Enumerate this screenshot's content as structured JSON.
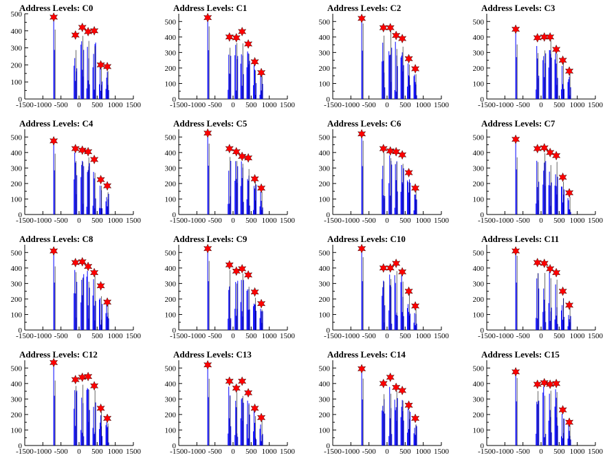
{
  "chart_data": [
    {
      "type": "bar",
      "title": "Address Levels: C0",
      "xlim": [
        -1500,
        1500
      ],
      "ylim": [
        0,
        500
      ],
      "x_ticks": [
        -1500,
        -1000,
        -500,
        0,
        500,
        1000,
        1500
      ],
      "y_ticks": [
        0,
        100,
        200,
        300,
        400,
        500
      ],
      "peaks_x": [
        -700,
        -100,
        90,
        250,
        420,
        600,
        780
      ],
      "peaks_y": [
        480,
        375,
        420,
        395,
        400,
        200,
        190
      ],
      "star_color": "#ff0000",
      "bar_color": "#0000ff"
    },
    {
      "type": "bar",
      "title": "Address Levels: C1",
      "xlim": [
        -1500,
        1500
      ],
      "ylim": [
        0,
        550
      ],
      "x_ticks": [
        -1500,
        -1000,
        -500,
        0,
        500,
        1000,
        1500
      ],
      "y_ticks": [
        0,
        100,
        200,
        300,
        400,
        500
      ],
      "peaks_x": [
        -700,
        -100,
        90,
        250,
        420,
        600,
        780
      ],
      "peaks_y": [
        525,
        400,
        395,
        435,
        355,
        240,
        170
      ],
      "star_color": "#ff0000",
      "bar_color": "#0000ff"
    },
    {
      "type": "bar",
      "title": "Address Levels: C2",
      "xlim": [
        -1500,
        1500
      ],
      "ylim": [
        0,
        550
      ],
      "x_ticks": [
        -1500,
        -1000,
        -500,
        0,
        500,
        1000,
        1500
      ],
      "y_ticks": [
        0,
        100,
        200,
        300,
        400,
        500
      ],
      "peaks_x": [
        -700,
        -100,
        90,
        250,
        420,
        600,
        780
      ],
      "peaks_y": [
        520,
        460,
        460,
        410,
        390,
        260,
        195
      ],
      "star_color": "#ff0000",
      "bar_color": "#0000ff"
    },
    {
      "type": "bar",
      "title": "Address Levels: C3",
      "xlim": [
        -1500,
        1500
      ],
      "ylim": [
        0,
        550
      ],
      "x_ticks": [
        -1500,
        -1000,
        -500,
        0,
        500,
        1000,
        1500
      ],
      "y_ticks": [
        0,
        100,
        200,
        300,
        400,
        500
      ],
      "peaks_x": [
        -700,
        -100,
        90,
        250,
        420,
        600,
        780
      ],
      "peaks_y": [
        450,
        395,
        400,
        400,
        320,
        250,
        180
      ],
      "star_color": "#ff0000",
      "bar_color": "#0000ff"
    },
    {
      "type": "bar",
      "title": "Address Levels: C4",
      "xlim": [
        -1500,
        1500
      ],
      "ylim": [
        0,
        550
      ],
      "x_ticks": [
        -1500,
        -1000,
        -500,
        0,
        500,
        1000,
        1500
      ],
      "y_ticks": [
        0,
        100,
        200,
        300,
        400,
        500
      ],
      "peaks_x": [
        -700,
        -100,
        90,
        250,
        420,
        600,
        780
      ],
      "peaks_y": [
        475,
        425,
        415,
        405,
        355,
        225,
        185
      ],
      "star_color": "#ff0000",
      "bar_color": "#0000ff"
    },
    {
      "type": "bar",
      "title": "Address Levels: C5",
      "xlim": [
        -1500,
        1500
      ],
      "ylim": [
        0,
        550
      ],
      "x_ticks": [
        -1500,
        -1000,
        -500,
        0,
        500,
        1000,
        1500
      ],
      "y_ticks": [
        0,
        100,
        200,
        300,
        400,
        500
      ],
      "peaks_x": [
        -700,
        -100,
        90,
        250,
        420,
        600,
        780
      ],
      "peaks_y": [
        525,
        425,
        405,
        375,
        365,
        230,
        170
      ],
      "star_color": "#ff0000",
      "bar_color": "#0000ff"
    },
    {
      "type": "bar",
      "title": "Address Levels: C6",
      "xlim": [
        -1500,
        1500
      ],
      "ylim": [
        0,
        550
      ],
      "x_ticks": [
        -1500,
        -1000,
        -500,
        0,
        500,
        1000,
        1500
      ],
      "y_ticks": [
        0,
        100,
        200,
        300,
        400,
        500
      ],
      "peaks_x": [
        -700,
        -100,
        90,
        250,
        420,
        600,
        780
      ],
      "peaks_y": [
        520,
        425,
        410,
        405,
        385,
        270,
        170
      ],
      "star_color": "#ff0000",
      "bar_color": "#0000ff"
    },
    {
      "type": "bar",
      "title": "Address Levels: C7",
      "xlim": [
        -1500,
        1500
      ],
      "ylim": [
        0,
        550
      ],
      "x_ticks": [
        -1500,
        -1000,
        -500,
        0,
        500,
        1000,
        1500
      ],
      "y_ticks": [
        0,
        100,
        200,
        300,
        400,
        500
      ],
      "peaks_x": [
        -700,
        -100,
        90,
        250,
        420,
        600,
        780
      ],
      "peaks_y": [
        485,
        425,
        430,
        400,
        380,
        240,
        140
      ],
      "star_color": "#ff0000",
      "bar_color": "#0000ff"
    },
    {
      "type": "bar",
      "title": "Address Levels: C8",
      "xlim": [
        -1500,
        1500
      ],
      "ylim": [
        0,
        550
      ],
      "x_ticks": [
        -1500,
        -1000,
        -500,
        0,
        500,
        1000,
        1500
      ],
      "y_ticks": [
        0,
        100,
        200,
        300,
        400,
        500
      ],
      "peaks_x": [
        -700,
        -100,
        90,
        250,
        420,
        600,
        780
      ],
      "peaks_y": [
        510,
        435,
        440,
        410,
        370,
        285,
        180
      ],
      "star_color": "#ff0000",
      "bar_color": "#0000ff"
    },
    {
      "type": "bar",
      "title": "Address Levels: C9",
      "xlim": [
        -1500,
        1500
      ],
      "ylim": [
        0,
        550
      ],
      "x_ticks": [
        -1500,
        -1000,
        -500,
        0,
        500,
        1000,
        1500
      ],
      "y_ticks": [
        0,
        100,
        200,
        300,
        400,
        500
      ],
      "peaks_x": [
        -700,
        -100,
        90,
        250,
        420,
        600,
        780
      ],
      "peaks_y": [
        525,
        420,
        380,
        395,
        355,
        245,
        170
      ],
      "star_color": "#ff0000",
      "bar_color": "#0000ff"
    },
    {
      "type": "bar",
      "title": "Address Levels: C10",
      "xlim": [
        -1500,
        1500
      ],
      "ylim": [
        0,
        550
      ],
      "x_ticks": [
        -1500,
        -1000,
        -500,
        0,
        500,
        1000,
        1500
      ],
      "y_ticks": [
        0,
        100,
        200,
        300,
        400,
        500
      ],
      "peaks_x": [
        -700,
        -100,
        90,
        250,
        420,
        600,
        780
      ],
      "peaks_y": [
        525,
        400,
        400,
        430,
        375,
        250,
        155
      ],
      "star_color": "#ff0000",
      "bar_color": "#0000ff"
    },
    {
      "type": "bar",
      "title": "Address Levels: C11",
      "xlim": [
        -1500,
        1500
      ],
      "ylim": [
        0,
        550
      ],
      "x_ticks": [
        -1500,
        -1000,
        -500,
        0,
        500,
        1000,
        1500
      ],
      "y_ticks": [
        0,
        100,
        200,
        300,
        400,
        500
      ],
      "peaks_x": [
        -700,
        -100,
        90,
        250,
        420,
        600,
        780
      ],
      "peaks_y": [
        510,
        435,
        430,
        395,
        370,
        250,
        160
      ],
      "star_color": "#ff0000",
      "bar_color": "#0000ff"
    },
    {
      "type": "bar",
      "title": "Address Levels: C12",
      "xlim": [
        -1500,
        1500
      ],
      "ylim": [
        0,
        550
      ],
      "x_ticks": [
        -1500,
        -1000,
        -500,
        0,
        500,
        1000,
        1500
      ],
      "y_ticks": [
        0,
        100,
        200,
        300,
        400,
        500
      ],
      "peaks_x": [
        -700,
        -100,
        90,
        250,
        420,
        600,
        780
      ],
      "peaks_y": [
        535,
        425,
        440,
        445,
        385,
        240,
        175
      ],
      "star_color": "#ff0000",
      "bar_color": "#0000ff"
    },
    {
      "type": "bar",
      "title": "Address Levels: C13",
      "xlim": [
        -1500,
        1500
      ],
      "ylim": [
        0,
        550
      ],
      "x_ticks": [
        -1500,
        -1000,
        -500,
        0,
        500,
        1000,
        1500
      ],
      "y_ticks": [
        0,
        100,
        200,
        300,
        400,
        500
      ],
      "peaks_x": [
        -700,
        -100,
        90,
        250,
        420,
        600,
        780
      ],
      "peaks_y": [
        520,
        415,
        370,
        415,
        340,
        240,
        180
      ],
      "star_color": "#ff0000",
      "bar_color": "#0000ff"
    },
    {
      "type": "bar",
      "title": "Address Levels: C14",
      "xlim": [
        -1500,
        1500
      ],
      "ylim": [
        0,
        550
      ],
      "x_ticks": [
        -1500,
        -1000,
        -500,
        0,
        500,
        1000,
        1500
      ],
      "y_ticks": [
        0,
        100,
        200,
        300,
        400,
        500
      ],
      "peaks_x": [
        -700,
        -100,
        90,
        250,
        420,
        600,
        780
      ],
      "peaks_y": [
        495,
        400,
        440,
        375,
        355,
        260,
        175
      ],
      "star_color": "#ff0000",
      "bar_color": "#0000ff"
    },
    {
      "type": "bar",
      "title": "Address Levels: C15",
      "xlim": [
        -1500,
        1500
      ],
      "ylim": [
        0,
        550
      ],
      "x_ticks": [
        -1500,
        -1000,
        -500,
        0,
        500,
        1000,
        1500
      ],
      "y_ticks": [
        0,
        100,
        200,
        300,
        400,
        500
      ],
      "peaks_x": [
        -700,
        -100,
        90,
        250,
        420,
        600,
        780
      ],
      "peaks_y": [
        475,
        395,
        405,
        395,
        400,
        230,
        150
      ],
      "star_color": "#ff0000",
      "bar_color": "#0000ff"
    }
  ]
}
